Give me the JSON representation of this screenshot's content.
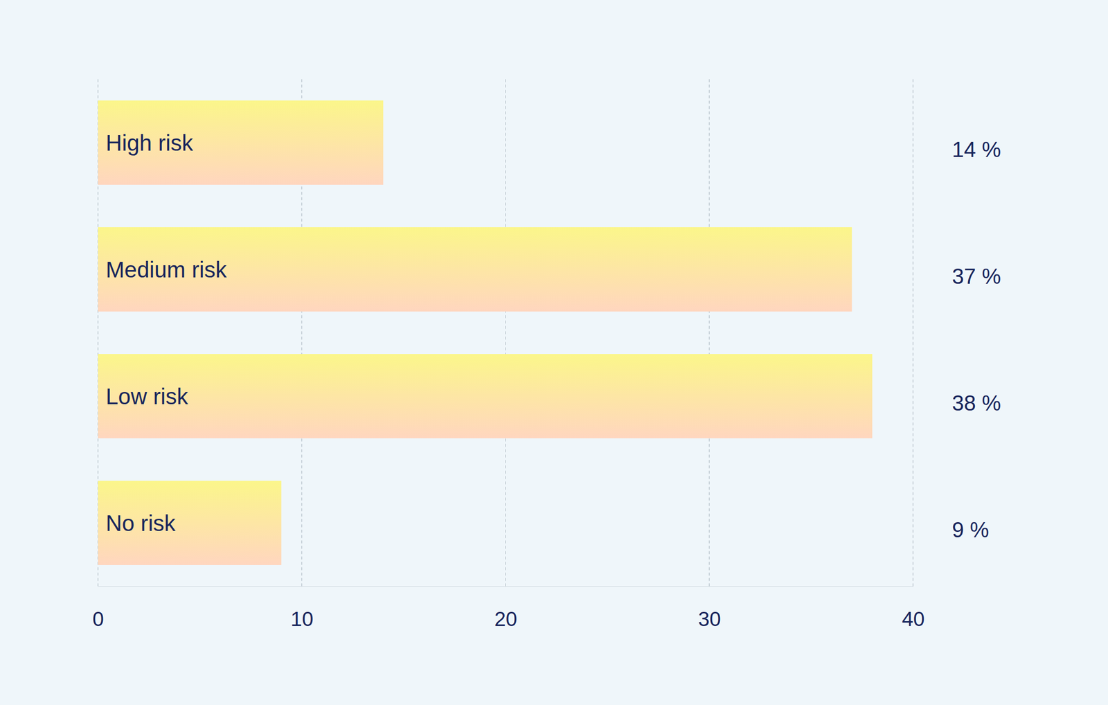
{
  "chart_data": {
    "type": "bar",
    "orientation": "horizontal",
    "categories": [
      "High risk",
      "Medium risk",
      "Low risk",
      "No risk"
    ],
    "values": [
      14,
      37,
      38,
      9
    ],
    "value_labels": [
      "14 %",
      "37 %",
      "38 %",
      "9 %"
    ],
    "data_labels": true,
    "color": "#fbf68a",
    "xlim": [
      0,
      40
    ],
    "xticks": [
      0,
      10,
      20,
      30,
      40
    ],
    "grid": true
  }
}
